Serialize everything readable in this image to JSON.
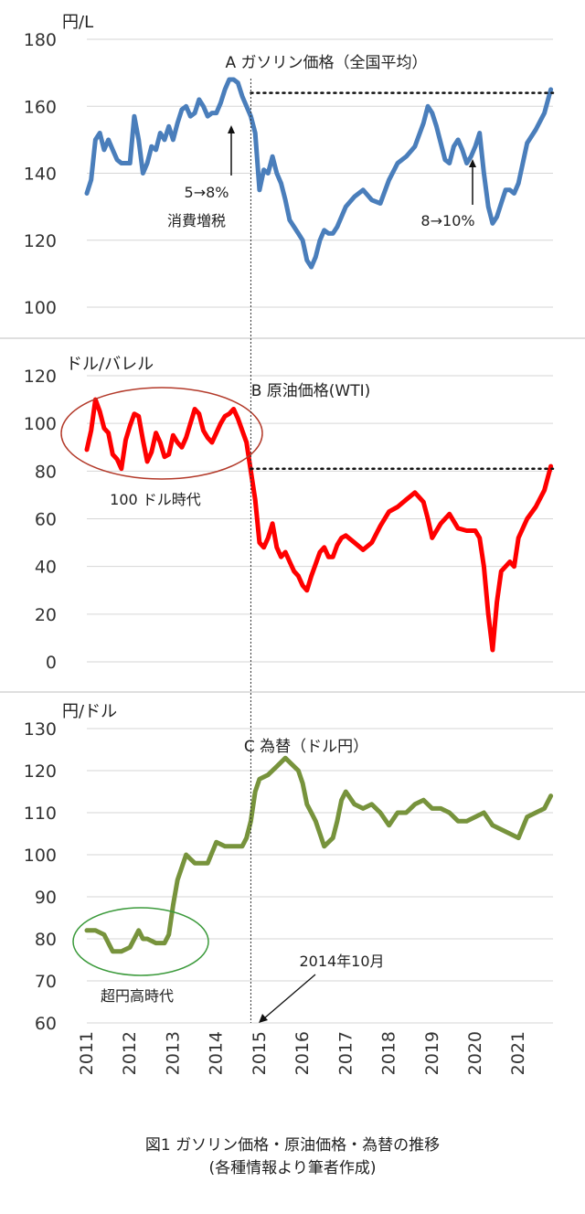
{
  "chart_data": [
    {
      "type": "line",
      "title": "A ガソリン価格（全国平均）",
      "unit": "円/L",
      "ylim": [
        100,
        180
      ],
      "yticks": [
        100,
        120,
        140,
        160,
        180
      ],
      "color": "#4a7ebb",
      "x_range": [
        2011.0,
        2021.8
      ],
      "reference_level": 164,
      "reference_x_start": 2014.8,
      "series": [
        {
          "x": [
            2011.0,
            2011.1,
            2011.2,
            2011.3,
            2011.4,
            2011.5,
            2011.6,
            2011.7,
            2011.8,
            2011.9,
            2012.0,
            2012.1,
            2012.2,
            2012.3,
            2012.4,
            2012.5,
            2012.6,
            2012.7,
            2012.8,
            2012.9,
            2013.0,
            2013.1,
            2013.2,
            2013.3,
            2013.4,
            2013.5,
            2013.6,
            2013.7,
            2013.8,
            2013.9,
            2014.0,
            2014.1,
            2014.2,
            2014.3,
            2014.4,
            2014.5,
            2014.6,
            2014.7,
            2014.8,
            2014.9,
            2015.0,
            2015.1,
            2015.2,
            2015.3,
            2015.4,
            2015.5,
            2015.6,
            2015.7,
            2015.8,
            2015.9,
            2016.0,
            2016.1,
            2016.2,
            2016.3,
            2016.4,
            2016.5,
            2016.6,
            2016.7,
            2016.8,
            2016.9,
            2017.0,
            2017.2,
            2017.4,
            2017.6,
            2017.8,
            2018.0,
            2018.2,
            2018.4,
            2018.6,
            2018.8,
            2018.9,
            2019.0,
            2019.1,
            2019.2,
            2019.3,
            2019.4,
            2019.5,
            2019.6,
            2019.7,
            2019.8,
            2019.9,
            2020.0,
            2020.1,
            2020.2,
            2020.3,
            2020.4,
            2020.5,
            2020.6,
            2020.7,
            2020.8,
            2020.9,
            2021.0,
            2021.2,
            2021.4,
            2021.6,
            2021.75
          ],
          "y": [
            134,
            138,
            150,
            152,
            147,
            150,
            147,
            144,
            143,
            143,
            143,
            157,
            150,
            140,
            143,
            148,
            147,
            152,
            150,
            154,
            150,
            155,
            159,
            160,
            157,
            158,
            162,
            160,
            157,
            158,
            158,
            161,
            165,
            168,
            168,
            167,
            163,
            160,
            157,
            152,
            135,
            141,
            140,
            145,
            140,
            137,
            132,
            126,
            124,
            122,
            120,
            114,
            112,
            115,
            120,
            123,
            122,
            122,
            124,
            127,
            130,
            133,
            135,
            132,
            131,
            138,
            143,
            145,
            148,
            155,
            160,
            158,
            154,
            149,
            144,
            143,
            148,
            150,
            147,
            143,
            145,
            148,
            152,
            140,
            130,
            125,
            127,
            131,
            135,
            135,
            134,
            137,
            149,
            153,
            158,
            165
          ]
        }
      ],
      "annotations": [
        {
          "text": "5→8%",
          "x": 2014.3
        },
        {
          "text": "消費増税",
          "x": 2014.3
        },
        {
          "text": "8→10%",
          "x": 2019.75
        }
      ]
    },
    {
      "type": "line",
      "title": "B 原油価格(WTI)",
      "unit": "ドル/バレル",
      "ylim": [
        0,
        120
      ],
      "yticks": [
        0,
        20,
        40,
        60,
        80,
        100,
        120
      ],
      "color": "#ff0000",
      "x_range": [
        2011.0,
        2021.8
      ],
      "reference_level": 81,
      "reference_x_start": 2014.8,
      "series": [
        {
          "x": [
            2011.0,
            2011.1,
            2011.2,
            2011.3,
            2011.4,
            2011.5,
            2011.6,
            2011.7,
            2011.8,
            2011.9,
            2012.0,
            2012.1,
            2012.2,
            2012.3,
            2012.4,
            2012.5,
            2012.6,
            2012.7,
            2012.8,
            2012.9,
            2013.0,
            2013.1,
            2013.2,
            2013.3,
            2013.4,
            2013.5,
            2013.6,
            2013.7,
            2013.8,
            2013.9,
            2014.0,
            2014.1,
            2014.2,
            2014.3,
            2014.4,
            2014.5,
            2014.6,
            2014.7,
            2014.8,
            2014.9,
            2015.0,
            2015.1,
            2015.2,
            2015.3,
            2015.4,
            2015.5,
            2015.6,
            2015.7,
            2015.8,
            2015.9,
            2016.0,
            2016.1,
            2016.2,
            2016.3,
            2016.4,
            2016.5,
            2016.6,
            2016.7,
            2016.8,
            2016.9,
            2017.0,
            2017.2,
            2017.4,
            2017.6,
            2017.8,
            2018.0,
            2018.2,
            2018.4,
            2018.6,
            2018.8,
            2018.9,
            2019.0,
            2019.2,
            2019.4,
            2019.6,
            2019.8,
            2020.0,
            2020.1,
            2020.2,
            2020.3,
            2020.4,
            2020.5,
            2020.6,
            2020.7,
            2020.8,
            2020.9,
            2021.0,
            2021.2,
            2021.4,
            2021.6,
            2021.75
          ],
          "y": [
            89,
            97,
            110,
            105,
            98,
            96,
            87,
            85,
            81,
            93,
            99,
            104,
            103,
            93,
            84,
            88,
            96,
            92,
            86,
            87,
            95,
            92,
            90,
            94,
            100,
            106,
            104,
            97,
            94,
            92,
            96,
            100,
            103,
            104,
            106,
            102,
            97,
            92,
            80,
            68,
            50,
            48,
            52,
            58,
            48,
            44,
            46,
            42,
            38,
            36,
            32,
            30,
            36,
            41,
            46,
            48,
            44,
            44,
            49,
            52,
            53,
            50,
            47,
            50,
            57,
            63,
            65,
            68,
            71,
            67,
            60,
            52,
            58,
            62,
            56,
            55,
            55,
            52,
            40,
            20,
            5,
            25,
            38,
            40,
            42,
            40,
            52,
            60,
            65,
            72,
            82
          ]
        }
      ],
      "annotations": [
        {
          "text": "100 ドル時代",
          "x": 2012.3
        }
      ]
    },
    {
      "type": "line",
      "title": "C 為替（ドル円）",
      "unit": "円/ドル",
      "ylim": [
        60,
        130
      ],
      "yticks": [
        60,
        70,
        80,
        90,
        100,
        110,
        120,
        130
      ],
      "color": "#77933c",
      "x_range": [
        2011.0,
        2021.8
      ],
      "series": [
        {
          "x": [
            2011.0,
            2011.2,
            2011.4,
            2011.6,
            2011.8,
            2012.0,
            2012.2,
            2012.3,
            2012.4,
            2012.6,
            2012.8,
            2012.9,
            2013.0,
            2013.1,
            2013.2,
            2013.3,
            2013.4,
            2013.5,
            2013.6,
            2013.8,
            2014.0,
            2014.2,
            2014.4,
            2014.6,
            2014.7,
            2014.8,
            2014.9,
            2015.0,
            2015.2,
            2015.4,
            2015.6,
            2015.8,
            2015.9,
            2016.0,
            2016.1,
            2016.2,
            2016.3,
            2016.4,
            2016.5,
            2016.6,
            2016.7,
            2016.8,
            2016.9,
            2017.0,
            2017.2,
            2017.4,
            2017.6,
            2017.8,
            2018.0,
            2018.2,
            2018.4,
            2018.6,
            2018.8,
            2019.0,
            2019.2,
            2019.4,
            2019.6,
            2019.8,
            2020.0,
            2020.2,
            2020.4,
            2020.6,
            2020.8,
            2021.0,
            2021.2,
            2021.4,
            2021.6,
            2021.75
          ],
          "y": [
            82,
            82,
            81,
            77,
            77,
            78,
            82,
            80,
            80,
            79,
            79,
            81,
            88,
            94,
            97,
            100,
            99,
            98,
            98,
            98,
            103,
            102,
            102,
            102,
            104,
            108,
            115,
            118,
            119,
            121,
            123,
            121,
            120,
            117,
            112,
            110,
            108,
            105,
            102,
            103,
            104,
            108,
            113,
            115,
            112,
            111,
            112,
            110,
            107,
            110,
            110,
            112,
            113,
            111,
            111,
            110,
            108,
            108,
            109,
            110,
            107,
            106,
            105,
            104,
            109,
            110,
            111,
            114
          ]
        }
      ],
      "annotations": [
        {
          "text": "超円高時代",
          "x": 2012.3
        },
        {
          "text": "2014年10月",
          "x": 2015.9
        }
      ]
    }
  ],
  "x_axis": {
    "ticks": [
      "2011",
      "2012",
      "2013",
      "2014",
      "2015",
      "2016",
      "2017",
      "2018",
      "2019",
      "2020",
      "2021"
    ],
    "vline_x": 2014.8
  },
  "caption": {
    "line1": "図1 ガソリン価格・原油価格・為替の推移",
    "line2": "(各種情報より筆者作成)"
  }
}
